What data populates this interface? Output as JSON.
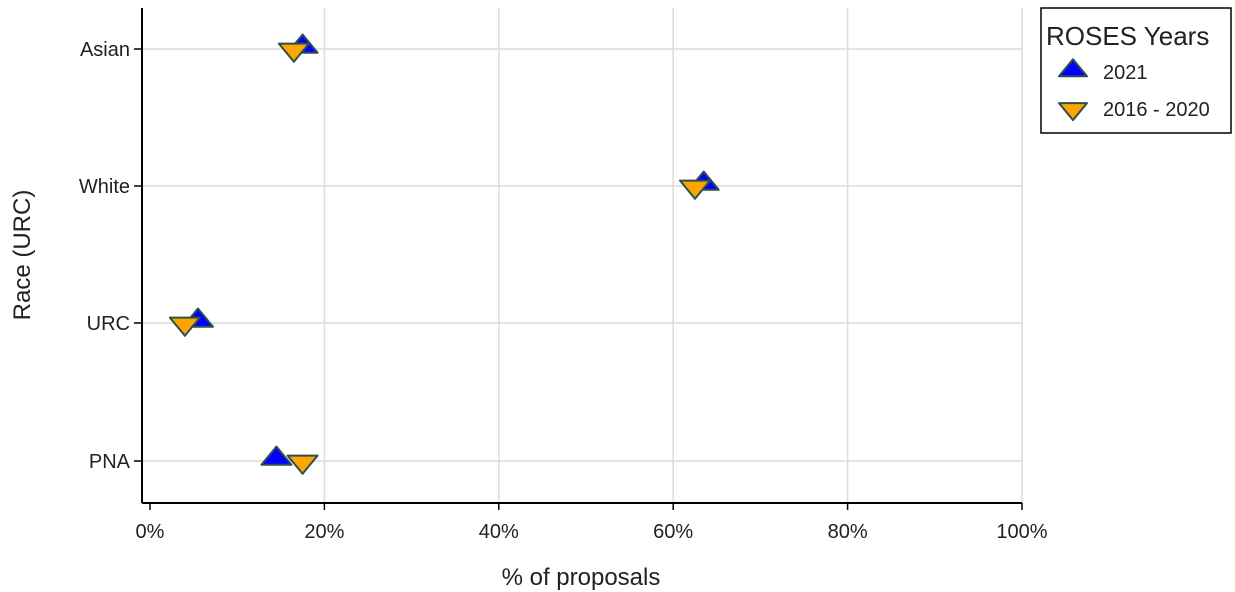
{
  "chart_data": {
    "type": "scatter",
    "title": "",
    "xlabel": "% of proposals",
    "ylabel": "Race (URC)",
    "xlim": [
      0,
      100
    ],
    "x_ticks": [
      0,
      20,
      40,
      60,
      80,
      100
    ],
    "x_tick_labels": [
      "0%",
      "20%",
      "40%",
      "60%",
      "80%",
      "100%"
    ],
    "categories": [
      "Asian",
      "White",
      "URC",
      "PNA"
    ],
    "grid": true,
    "legend": {
      "title": "ROSES Years",
      "placement": "right-top"
    },
    "series": [
      {
        "name": "2021",
        "marker": "triangle-up",
        "color": "#0000ff",
        "values": [
          17.5,
          63.5,
          5.5,
          14.5
        ]
      },
      {
        "name": "2016 - 2020",
        "marker": "triangle-down",
        "color": "#ffa500",
        "values": [
          16.5,
          62.5,
          4.0,
          17.5
        ]
      }
    ],
    "marker_stroke": "#2f4f4f"
  }
}
